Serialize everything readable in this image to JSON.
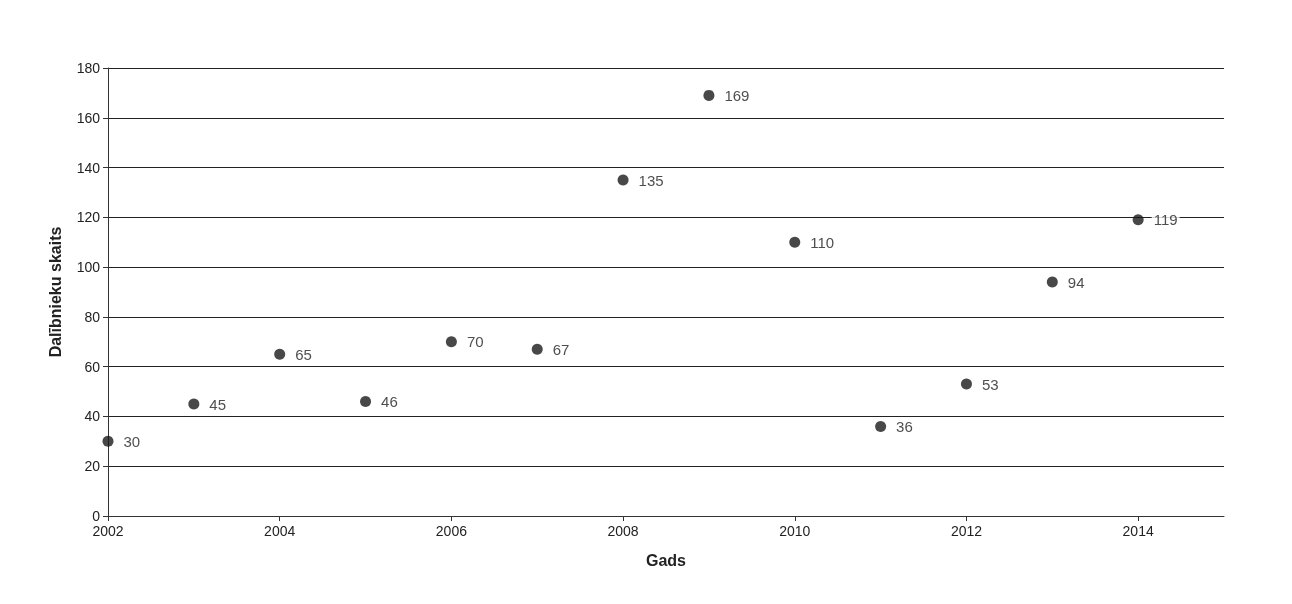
{
  "chart_data": {
    "type": "scatter",
    "xlabel": "Gads",
    "ylabel": "Dalībnieku skaits",
    "x": [
      2002,
      2003,
      2004,
      2005,
      2006,
      2007,
      2008,
      2009,
      2010,
      2011,
      2012,
      2013,
      2014
    ],
    "values": [
      30,
      45,
      65,
      46,
      70,
      67,
      135,
      169,
      110,
      36,
      53,
      94,
      119
    ],
    "color": "#1a1a1a",
    "marker": "circle",
    "data_labels": true,
    "xlim": [
      2002,
      2015
    ],
    "xticks": [
      2002,
      2004,
      2006,
      2008,
      2010,
      2012,
      2014
    ],
    "ylim": [
      0,
      180
    ],
    "yticks": [
      0,
      20,
      40,
      60,
      80,
      100,
      120,
      140,
      160,
      180
    ],
    "grid": "y"
  }
}
